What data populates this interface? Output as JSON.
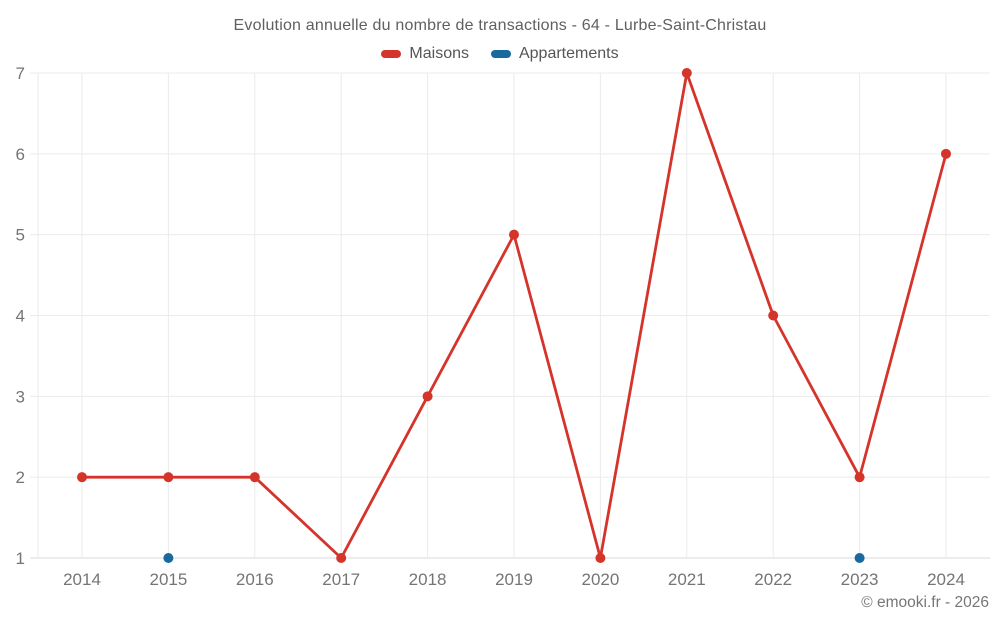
{
  "chart": {
    "title": "Evolution annuelle du nombre de transactions - 64 - Lurbe-Saint-Christau",
    "footer": "© emooki.fr - 2026"
  },
  "chart_data": {
    "type": "line",
    "title": "Evolution annuelle du nombre de transactions - 64 - Lurbe-Saint-Christau",
    "categories": [
      "2014",
      "2015",
      "2016",
      "2017",
      "2018",
      "2019",
      "2020",
      "2021",
      "2022",
      "2023",
      "2024"
    ],
    "series": [
      {
        "name": "Maisons",
        "color": "#d5342b",
        "values": [
          2,
          2,
          2,
          1,
          3,
          5,
          1,
          7,
          4,
          2,
          6
        ]
      },
      {
        "name": "Appartements",
        "color": "#17699e",
        "values": [
          null,
          1,
          null,
          null,
          null,
          null,
          null,
          null,
          null,
          1,
          null
        ]
      }
    ],
    "xlabel": "",
    "ylabel": "",
    "ylim": [
      1,
      7
    ],
    "y_ticks": [
      1,
      2,
      3,
      4,
      5,
      6,
      7
    ],
    "grid": true,
    "legend_position": "top",
    "colors": {
      "grid_line": "#ebebeb",
      "axis_line": "#d9d9d9",
      "tick_label": "#757575"
    }
  }
}
